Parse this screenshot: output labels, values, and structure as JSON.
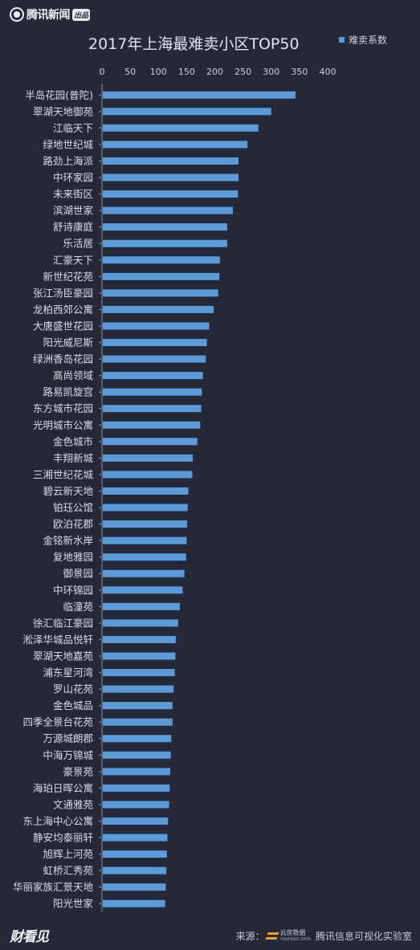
{
  "header": {
    "logo_text": "腾讯新闻",
    "logo_badge": "出品"
  },
  "footer": {
    "left_text": "财看见",
    "source_label": "来源：",
    "brand_cn": "云房数据",
    "brand_en": "YUNFANG DATA",
    "credit": "腾讯信息可视化实验室"
  },
  "chart_data": {
    "type": "bar",
    "orientation": "horizontal",
    "title": "2017年上海最难卖小区TOP50",
    "legend": [
      "难卖系数"
    ],
    "legend_position": "top-right",
    "xlim": [
      0,
      400
    ],
    "xticks": [
      0,
      50,
      100,
      150,
      200,
      250,
      300,
      350,
      400
    ],
    "grid": false,
    "color": "#5b9bd9",
    "categories": [
      "半岛花园(普陀)",
      "翠湖天地御苑",
      "江临天下",
      "绿地世纪城",
      "路劲上海派",
      "中环家园",
      "未来街区",
      "滨湖世家",
      "舒诗康庭",
      "乐活居",
      "汇豪天下",
      "新世纪花苑",
      "张江汤臣豪园",
      "龙柏西郊公寓",
      "大唐盛世花园",
      "阳光威尼斯",
      "绿洲香岛花园",
      "高尚领域",
      "路易凯旋宫",
      "东方城市花园",
      "光明城市公寓",
      "金色城市",
      "丰翔新城",
      "三湘世纪花城",
      "碧云新天地",
      "铂珏公馆",
      "欧泊花郡",
      "金铭新水岸",
      "复地雅园",
      "御景园",
      "中环锦园",
      "临潼苑",
      "徐汇临江豪园",
      "淞泽华城品悦轩",
      "翠湖天地嘉苑",
      "浦东星河湾",
      "罗山花苑",
      "金色城品",
      "四季全景台花苑",
      "万源城朗郡",
      "中海万锦城",
      "豪景苑",
      "海珀日晖公寓",
      "文通雅苑",
      "东上海中心公寓",
      "静安均泰丽轩",
      "旭辉上河苑",
      "虹桥汇秀苑",
      "华丽家族汇景天地",
      "阳光世家"
    ],
    "series": [
      {
        "name": "难卖系数",
        "values": [
          343,
          300,
          277,
          258,
          242,
          242,
          241,
          232,
          222,
          222,
          209,
          208,
          206,
          198,
          190,
          186,
          184,
          179,
          177,
          176,
          174,
          169,
          161,
          160,
          153,
          152,
          151,
          150,
          149,
          146,
          143,
          138,
          135,
          131,
          130,
          129,
          127,
          125,
          125,
          123,
          122,
          121,
          120,
          119,
          117,
          116,
          115,
          114,
          113,
          112
        ]
      }
    ]
  }
}
